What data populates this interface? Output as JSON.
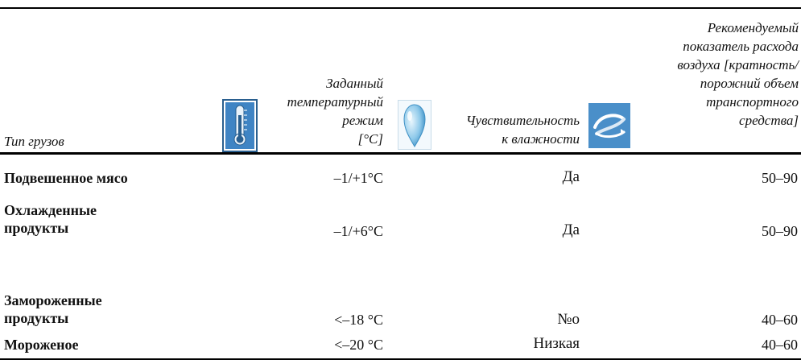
{
  "header": {
    "type": "Тип грузов",
    "temp_line1": "Заданный",
    "temp_line2": "температурный",
    "temp_line3": "режим",
    "temp_line4": "[°C]",
    "hum_line1": "Чувствительность",
    "hum_line2": "к влажности",
    "air_line1": "Рекомендуемый",
    "air_line2": "показатель расхода",
    "air_line3": "воздуха [кратность/",
    "air_line4": "порожний объем",
    "air_line5": "транспортного",
    "air_line6": "средства]"
  },
  "icons": {
    "temperature": "thermometer-icon",
    "humidity": "water-drop-icon",
    "airflow": "airflow-icon"
  },
  "rows": [
    {
      "name_line1": "Подвешенное мясо",
      "name_line2": "",
      "temp": "–1/+1°C",
      "humidity": "Да",
      "air": "50–90"
    },
    {
      "name_line1": "Охлажденные",
      "name_line2": "продукты",
      "temp": "–1/+6°C",
      "humidity": "Да",
      "air": "50–90"
    },
    {
      "name_line1": "Замороженные",
      "name_line2": "продукты",
      "temp": "<–18 °C",
      "humidity": "№о",
      "air": "40–60"
    },
    {
      "name_line1": "Мороженое",
      "name_line2": "",
      "temp": "<–20 °C",
      "humidity": "Низкая",
      "air": "40–60"
    }
  ],
  "colors": {
    "icon_blue": "#4a8fc9",
    "icon_dark": "#2a5f8f",
    "drop_light": "#c8e6f5",
    "rule": "#000000"
  }
}
